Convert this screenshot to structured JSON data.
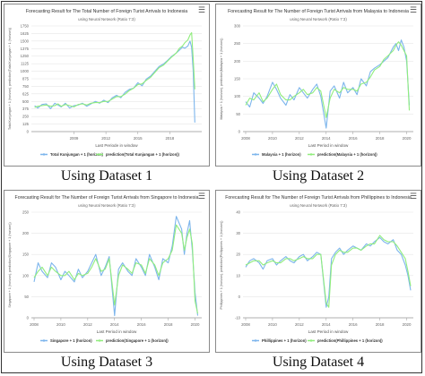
{
  "panels": [
    {
      "caption": "Using Dataset 1",
      "chart_data": {
        "type": "line",
        "title": "Forecasting Result for The Total Number of Foreign Turist Arrivals to Indonesia",
        "subtitle": "using Neural Network (Ratio 7:3)",
        "xlabel": "Last Periode in window",
        "ylabel": "Total Kunjungan + 1 (horizon), prediction(Total Kunjungan + 1 (horizon))",
        "xlim": [
          2005,
          2021
        ],
        "ylim": [
          0,
          1750
        ],
        "xticks": [
          "2009",
          "2012",
          "2015",
          "2018"
        ],
        "yticks": [
          "0",
          "125",
          "250",
          "375",
          "500",
          "625",
          "750",
          "875",
          "1000",
          "1125",
          "1250",
          "1375",
          "1500",
          "1625",
          "1750"
        ],
        "x": [
          2005.3,
          2005.6,
          2006,
          2006.4,
          2006.8,
          2007.2,
          2007.5,
          2007.8,
          2008.2,
          2008.6,
          2009,
          2009.4,
          2009.8,
          2010.2,
          2010.6,
          2011,
          2011.4,
          2011.8,
          2012.2,
          2012.6,
          2013,
          2013.4,
          2013.8,
          2014.2,
          2014.6,
          2015,
          2015.4,
          2015.8,
          2016.2,
          2016.6,
          2017,
          2017.4,
          2017.8,
          2018.2,
          2018.6,
          2018.9,
          2019.2,
          2019.4,
          2019.7,
          2019.9,
          2020.05,
          2020.2,
          2020.35
        ],
        "series": [
          {
            "name": "Total Kunjungan + 1 (horizon)",
            "color": "#7cb5ec",
            "values": [
              430,
              390,
              450,
              460,
              380,
              470,
              440,
              410,
              470,
              390,
              430,
              440,
              470,
              420,
              460,
              500,
              470,
              520,
              480,
              560,
              600,
              560,
              650,
              700,
              720,
              810,
              760,
              870,
              920,
              1000,
              1080,
              1120,
              1180,
              1250,
              1300,
              1350,
              1400,
              1380,
              1420,
              1500,
              1400,
              1000,
              150
            ]
          },
          {
            "name": "prediction(Total Kunjungan + 1 (horizon))",
            "color": "#90ed7d",
            "values": [
              400,
              420,
              430,
              440,
              420,
              430,
              460,
              420,
              450,
              430,
              410,
              450,
              460,
              440,
              470,
              480,
              480,
              500,
              500,
              540,
              580,
              580,
              620,
              680,
              720,
              780,
              790,
              850,
              900,
              980,
              1060,
              1100,
              1170,
              1240,
              1300,
              1380,
              1420,
              1470,
              1520,
              1600,
              1640,
              1200,
              700
            ]
          }
        ],
        "legend_position": "bottom"
      }
    },
    {
      "caption": "Using Dataset 2",
      "chart_data": {
        "type": "line",
        "title": "Forecasting Result for The Number of Foreign Turist Arrivals from Malaysia to Indonesia",
        "subtitle": "using Neural Network (Ratio 7:3)",
        "xlabel": "Last Period in window",
        "ylabel": "Malaysia + 1 (horizon), prediction(Malaysia + 1 (horizon))",
        "xlim": [
          2007.8,
          2020.5
        ],
        "ylim": [
          0,
          300
        ],
        "xticks": [
          "2008",
          "2010",
          "2012",
          "2014",
          "2016",
          "2018",
          "2020"
        ],
        "yticks": [
          "0",
          "50",
          "100",
          "150",
          "200",
          "250",
          "300"
        ],
        "x": [
          2008,
          2008.3,
          2008.6,
          2009,
          2009.3,
          2009.6,
          2010,
          2010.3,
          2010.6,
          2011,
          2011.3,
          2011.6,
          2012,
          2012.3,
          2012.6,
          2013,
          2013.3,
          2013.6,
          2014,
          2014.3,
          2014.6,
          2015,
          2015.3,
          2015.6,
          2016,
          2016.3,
          2016.6,
          2017,
          2017.3,
          2017.6,
          2018,
          2018.3,
          2018.6,
          2019,
          2019.2,
          2019.4,
          2019.6,
          2019.8,
          2020,
          2020.2
        ],
        "series": [
          {
            "name": "Malaysia + 1 (horizon)",
            "color": "#7cb5ec",
            "values": [
              85,
              70,
              110,
              95,
              80,
              100,
              140,
              120,
              95,
              75,
              105,
              90,
              125,
              110,
              95,
              120,
              135,
              100,
              10,
              115,
              130,
              95,
              140,
              110,
              125,
              105,
              150,
              130,
              170,
              180,
              190,
              200,
              210,
              240,
              250,
              230,
              260,
              240,
              200,
              75
            ]
          },
          {
            "name": "prediction(Malaysia + 1 (horizon))",
            "color": "#90ed7d",
            "values": [
              75,
              95,
              90,
              110,
              85,
              95,
              120,
              135,
              105,
              90,
              90,
              100,
              110,
              120,
              105,
              110,
              125,
              115,
              40,
              95,
              120,
              110,
              125,
              120,
              120,
              115,
              135,
              140,
              155,
              175,
              185,
              205,
              215,
              230,
              245,
              255,
              245,
              230,
              215,
              60
            ]
          }
        ],
        "legend_position": "bottom"
      }
    },
    {
      "caption": "Using Dataset 3",
      "chart_data": {
        "type": "line",
        "title": "Forecasting Result for The Number of Foreign Turist Arrivals from Singapore to Indonesia",
        "subtitle": "using Neural Network (Ratio 7:3)",
        "xlabel": "Last Period in window",
        "ylabel": "Singapore + 1 (horizon), prediction(Singapore + 1 (horizon))",
        "xlim": [
          2007.8,
          2020.5
        ],
        "ylim": [
          0,
          250
        ],
        "xticks": [
          "2008",
          "2010",
          "2012",
          "2014",
          "2016",
          "2018",
          "2020"
        ],
        "yticks": [
          "0",
          "50",
          "100",
          "150",
          "200",
          "250"
        ],
        "x": [
          2008,
          2008.3,
          2008.6,
          2009,
          2009.3,
          2009.6,
          2010,
          2010.3,
          2010.6,
          2011,
          2011.3,
          2011.6,
          2012,
          2012.3,
          2012.6,
          2013,
          2013.3,
          2013.6,
          2014,
          2014.3,
          2014.6,
          2015,
          2015.3,
          2015.6,
          2016,
          2016.3,
          2016.6,
          2017,
          2017.3,
          2017.6,
          2018,
          2018.3,
          2018.6,
          2019,
          2019.2,
          2019.4,
          2019.6,
          2019.8,
          2020,
          2020.2
        ],
        "series": [
          {
            "name": "Singapore + 1 (horizon)",
            "color": "#7cb5ec",
            "values": [
              85,
              130,
              110,
              95,
              130,
              120,
              90,
              110,
              100,
              85,
              115,
              95,
              110,
              130,
              150,
              100,
              120,
              145,
              5,
              115,
              130,
              110,
              100,
              140,
              120,
              100,
              150,
              120,
              90,
              140,
              130,
              170,
              240,
              210,
              150,
              200,
              230,
              160,
              60,
              5
            ]
          },
          {
            "name": "prediction(Singapore + 1 (horizon))",
            "color": "#90ed7d",
            "values": [
              95,
              110,
              120,
              100,
              120,
              110,
              100,
              100,
              110,
              90,
              105,
              100,
              105,
              120,
              140,
              110,
              115,
              140,
              30,
              100,
              125,
              115,
              105,
              130,
              125,
              105,
              140,
              125,
              100,
              130,
              140,
              160,
              220,
              200,
              160,
              190,
              210,
              175,
              40,
              10
            ]
          }
        ],
        "legend_position": "bottom"
      }
    },
    {
      "caption": "Using Dataset 4",
      "chart_data": {
        "type": "line",
        "title": "Forecasting Result for The Number of Foreign Turist Arrivals from Phillippines to Indonesia",
        "subtitle": "using Neural Network (Ratio 7:3)",
        "xlabel": "Last Period in window",
        "ylabel": "Phillippines + 1 (horizon), prediction(Phillippines + 1 (horizon))",
        "xlim": [
          2007.8,
          2020.5
        ],
        "ylim": [
          -10,
          40
        ],
        "xticks": [
          "2008",
          "2010",
          "2012",
          "2014",
          "2016",
          "2018",
          "2020"
        ],
        "yticks": [
          "-10",
          "0",
          "10",
          "20",
          "30",
          "40"
        ],
        "x": [
          2008,
          2008.3,
          2008.6,
          2009,
          2009.3,
          2009.6,
          2010,
          2010.3,
          2010.6,
          2011,
          2011.3,
          2011.6,
          2012,
          2012.3,
          2012.6,
          2013,
          2013.3,
          2013.6,
          2014,
          2014.2,
          2014.4,
          2014.7,
          2015,
          2015.3,
          2015.6,
          2016,
          2016.3,
          2016.6,
          2017,
          2017.3,
          2017.6,
          2018,
          2018.3,
          2018.6,
          2019,
          2019.3,
          2019.6,
          2019.9,
          2020.1,
          2020.3
        ],
        "series": [
          {
            "name": "Phillippines + 1 (horizon)",
            "color": "#7cb5ec",
            "values": [
              14,
              17,
              18,
              16,
              13,
              17,
              18,
              15,
              17,
              19,
              17,
              16,
              19,
              20,
              17,
              19,
              21,
              20,
              -5,
              0,
              18,
              21,
              23,
              20,
              22,
              24,
              23,
              22,
              25,
              24,
              26,
              28,
              26,
              25,
              27,
              22,
              20,
              15,
              10,
              3
            ]
          },
          {
            "name": "prediction(Phillippines + 1 (horizon))",
            "color": "#90ed7d",
            "values": [
              15,
              16,
              17,
              17,
              15,
              16,
              17,
              16,
              16,
              18,
              18,
              17,
              18,
              19,
              18,
              18,
              20,
              20,
              -3,
              -5,
              15,
              20,
              22,
              21,
              21,
              23,
              23,
              22,
              24,
              25,
              25,
              29,
              27,
              26,
              26,
              24,
              21,
              18,
              12,
              5
            ]
          }
        ],
        "legend_position": "bottom"
      }
    }
  ]
}
